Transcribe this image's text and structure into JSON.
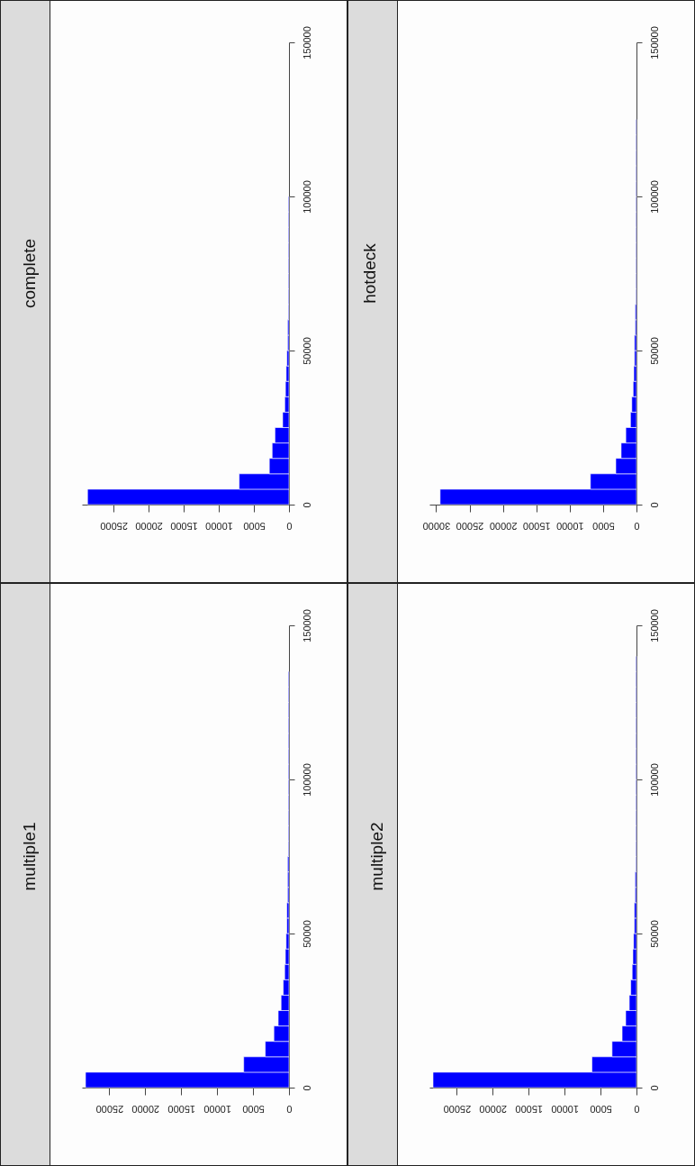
{
  "chart_data": [
    {
      "type": "histogram",
      "title": "complete",
      "orientation": "horizontal",
      "color": "#0000ff",
      "bins": [
        0,
        5000,
        10000,
        15000,
        20000,
        25000,
        30000,
        35000,
        40000,
        45000,
        50000,
        55000,
        60000,
        65000,
        70000,
        75000,
        80000,
        85000,
        90000,
        95000,
        100000
      ],
      "values": [
        28700,
        7100,
        2800,
        2400,
        2000,
        900,
        600,
        500,
        400,
        300,
        200,
        200,
        100,
        100,
        100,
        100,
        100,
        100,
        100,
        100
      ],
      "xlim": [
        29500,
        0
      ],
      "xticks": [
        0,
        5000,
        10000,
        15000,
        20000,
        25000
      ],
      "ylim": [
        0,
        150000
      ],
      "yticks": [
        0,
        50000,
        100000,
        150000
      ]
    },
    {
      "type": "histogram",
      "title": "hotdeck",
      "orientation": "horizontal",
      "color": "#0000ff",
      "bins": [
        0,
        5000,
        10000,
        15000,
        20000,
        25000,
        30000,
        35000,
        40000,
        45000,
        50000,
        55000,
        60000,
        65000,
        70000,
        75000,
        80000,
        85000,
        90000,
        95000,
        100000,
        105000,
        110000,
        115000,
        120000,
        125000
      ],
      "values": [
        29400,
        6900,
        3100,
        2300,
        1600,
        900,
        700,
        500,
        400,
        300,
        300,
        200,
        200,
        100,
        100,
        100,
        100,
        100,
        100,
        100,
        100,
        100,
        100,
        100,
        100
      ],
      "xlim": [
        31000,
        0
      ],
      "xticks": [
        0,
        5000,
        10000,
        15000,
        20000,
        25000,
        30000
      ],
      "ylim": [
        0,
        150000
      ],
      "yticks": [
        0,
        50000,
        100000,
        150000
      ]
    },
    {
      "type": "histogram",
      "title": "multiple1",
      "orientation": "horizontal",
      "color": "#0000ff",
      "bins": [
        0,
        5000,
        10000,
        15000,
        20000,
        25000,
        30000,
        35000,
        40000,
        45000,
        50000,
        55000,
        60000,
        65000,
        70000,
        75000,
        80000,
        85000,
        90000,
        95000,
        100000,
        105000,
        110000,
        115000,
        120000,
        125000,
        130000,
        135000
      ],
      "values": [
        28300,
        6300,
        3300,
        2100,
        1500,
        1100,
        800,
        600,
        500,
        400,
        300,
        300,
        200,
        200,
        200,
        100,
        100,
        100,
        100,
        100,
        100,
        100,
        100,
        100,
        100,
        100,
        100
      ],
      "xlim": [
        28800,
        0
      ],
      "xticks": [
        0,
        5000,
        10000,
        15000,
        20000,
        25000
      ],
      "ylim": [
        0,
        150000
      ],
      "yticks": [
        0,
        50000,
        100000,
        150000
      ]
    },
    {
      "type": "histogram",
      "title": "multiple2",
      "orientation": "horizontal",
      "color": "#0000ff",
      "bins": [
        0,
        5000,
        10000,
        15000,
        20000,
        25000,
        30000,
        35000,
        40000,
        45000,
        50000,
        55000,
        60000,
        65000,
        70000,
        75000,
        80000,
        85000,
        90000,
        95000,
        100000,
        105000,
        110000,
        115000,
        120000,
        125000,
        130000,
        135000,
        140000
      ],
      "values": [
        28300,
        6200,
        3400,
        2000,
        1500,
        1000,
        800,
        600,
        500,
        400,
        300,
        300,
        200,
        200,
        100,
        100,
        100,
        100,
        100,
        100,
        100,
        100,
        100,
        100,
        100,
        100,
        100,
        100
      ],
      "xlim": [
        28800,
        0
      ],
      "xticks": [
        0,
        5000,
        10000,
        15000,
        20000,
        25000
      ],
      "ylim": [
        0,
        150000
      ],
      "yticks": [
        0,
        50000,
        100000,
        150000
      ]
    }
  ]
}
